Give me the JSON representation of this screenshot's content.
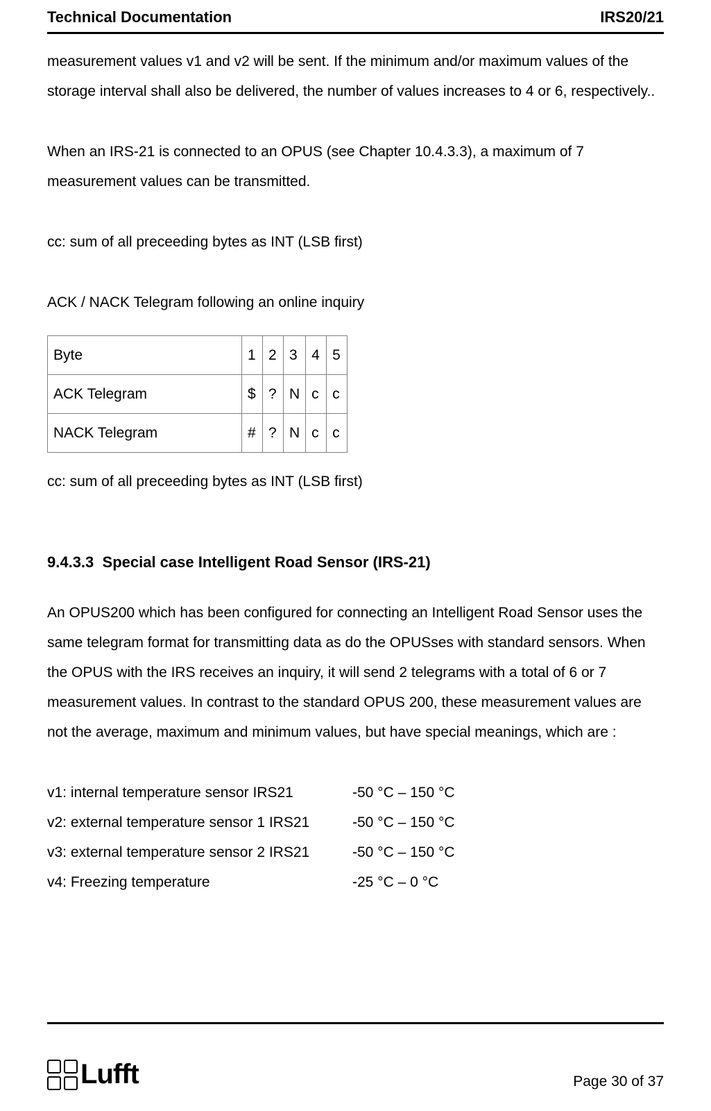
{
  "header": {
    "left": "Technical Documentation",
    "right": "IRS20/21"
  },
  "p1": "measurement values v1 and v2 will be sent. If the minimum and/or maximum values of the storage interval shall also be delivered, the number of values increases to 4 or 6, respectively..",
  "p2": "When an IRS-21 is connected to an OPUS (see Chapter 10.4.3.3), a maximum of 7 measurement values can be transmitted.",
  "p3": "cc: sum of all preceeding bytes as INT (LSB first)",
  "p4": "ACK / NACK Telegram following an online inquiry",
  "table": {
    "rows": [
      [
        "Byte",
        "1",
        "2",
        "3",
        "4",
        "5"
      ],
      [
        "ACK Telegram",
        "$",
        "?",
        "N",
        "c",
        "c"
      ],
      [
        "NACK Telegram",
        "#",
        "?",
        "N",
        "c",
        "c"
      ]
    ]
  },
  "p5": "cc: sum of all preceeding bytes as INT (LSB first)",
  "section": {
    "num": "9.4.3.3",
    "title": "Special case Intelligent Road Sensor (IRS-21)"
  },
  "p6": "An OPUS200 which has been configured for connecting an Intelligent Road Sensor uses the same telegram format for transmitting data as do the OPUSses with standard sensors. When the OPUS with the IRS receives an inquiry, it will send 2 telegrams with a total of 6 or 7 measurement values. In contrast to the standard OPUS 200, these measurement values are not the average, maximum and minimum values, but have special meanings, which are :",
  "vlist": [
    {
      "desc": "v1: internal temperature sensor IRS21",
      "range": "-50 °C – 150 °C"
    },
    {
      "desc": "v2: external temperature sensor 1 IRS21",
      "range": "-50 °C – 150 °C"
    },
    {
      "desc": "v3: external temperature sensor 2 IRS21",
      "range": "-50 °C – 150 °C"
    },
    {
      "desc": "v4: Freezing temperature",
      "range": "-25 °C – 0 °C"
    }
  ],
  "footer": {
    "logo_text": "Lufft",
    "page": "Page 30 of 37"
  }
}
